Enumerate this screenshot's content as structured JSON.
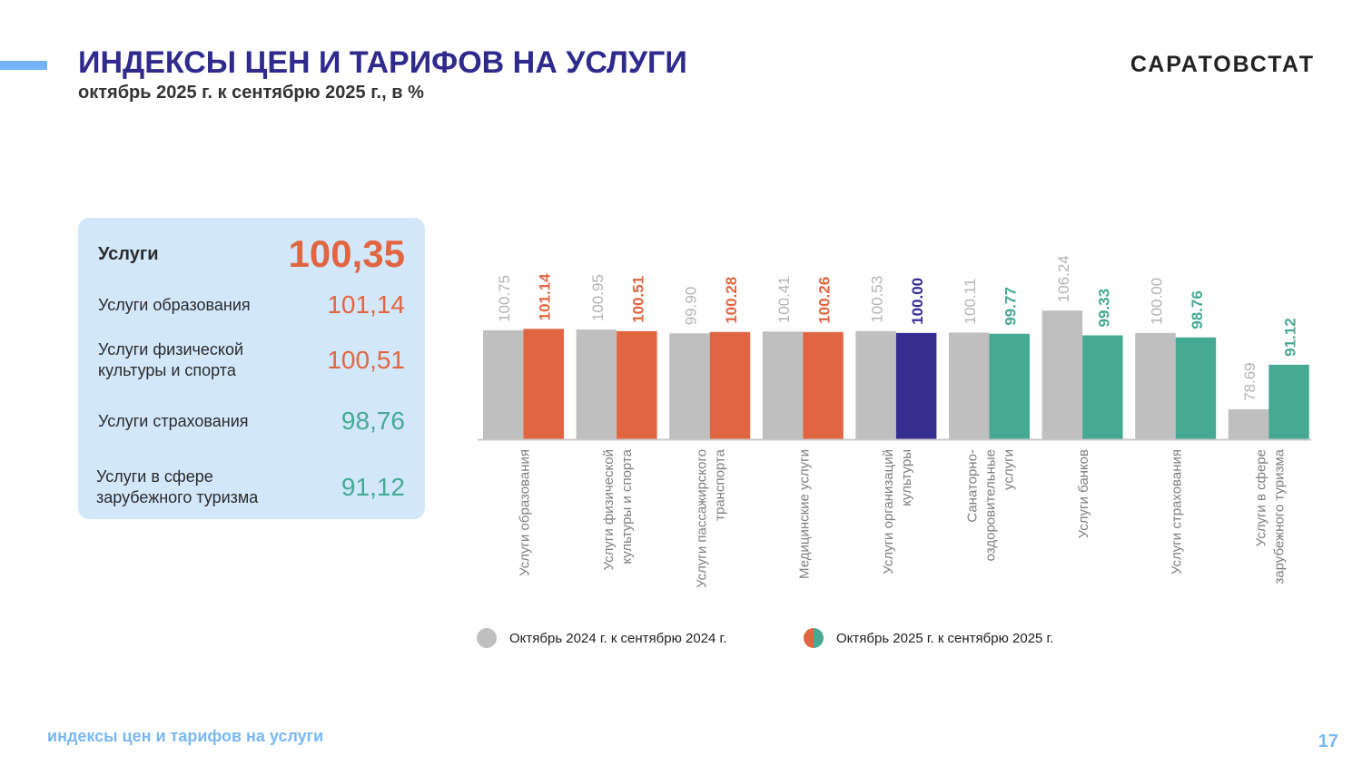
{
  "header": {
    "title": "ИНДЕКСЫ ЦЕН И ТАРИФОВ НА УСЛУГИ",
    "subtitle": "октябрь 2025 г. к сентябрю 2025 г., в %",
    "logo": "САРАТОВСТАТ"
  },
  "panel": {
    "rows": [
      {
        "label": "Услуги",
        "value": "100,35",
        "color": "#e06641"
      },
      {
        "label": "Услуги образования",
        "value": "101,14",
        "color": "#e06641"
      },
      {
        "label": "Услуги физической\nкультуры и спорта",
        "value": "100,51",
        "color": "#e06641"
      },
      {
        "label": "Услуги страхования",
        "value": "98,76",
        "color": "#46a994"
      },
      {
        "label": "Услуги в сфере\nзарубежного туризма",
        "value": "91,12",
        "color": "#46a994"
      }
    ]
  },
  "chart_data": {
    "type": "bar",
    "categories": [
      [
        "Услуги образования"
      ],
      [
        "Услуги физической",
        "культуры и спорта"
      ],
      [
        "Услуги пассажирского",
        "транспорта"
      ],
      [
        "Медицинские услуги"
      ],
      [
        "Услуги организаций",
        "культуры"
      ],
      [
        "Санаторно-",
        "оздоровительные",
        "услуги"
      ],
      [
        "Услуги банков"
      ],
      [
        "Услуги страхования"
      ],
      [
        "Услуги в сфере",
        "зарубежного туризма"
      ]
    ],
    "series": [
      {
        "name": "Октябрь 2024 г. к сентябрю 2024 г.",
        "values": [
          100.75,
          100.95,
          99.9,
          100.41,
          100.53,
          100.11,
          106.24,
          100.0,
          78.69
        ],
        "labels": [
          "100.75",
          "100.95",
          "99.90",
          "100.41",
          "100.53",
          "100.11",
          "106.24",
          "100.00",
          "78.69"
        ],
        "color": "#bfbfbf",
        "label_color": "#b3b3b3"
      },
      {
        "name": "Октябрь 2025 г. к сентябрю 2025 г.",
        "values": [
          101.14,
          100.51,
          100.28,
          100.26,
          100.0,
          99.77,
          99.33,
          98.76,
          91.12
        ],
        "labels": [
          "101.14",
          "100.51",
          "100.28",
          "100.26",
          "100.00",
          "99.77",
          "99.33",
          "98.76",
          "91.12"
        ],
        "colors": [
          "#e06641",
          "#e06641",
          "#e06641",
          "#e06641",
          "#362d91",
          "#46a994",
          "#46a994",
          "#46a994",
          "#46a994"
        ]
      }
    ],
    "ylim": [
      70.3,
      110
    ],
    "grid": false,
    "legend_placement": "bottom",
    "legend_colors": [
      "#bfbfbf",
      [
        "#e06641",
        "#46a994"
      ]
    ]
  },
  "footer": {
    "text": "индексы цен и тарифов на услуги",
    "page": "17"
  }
}
